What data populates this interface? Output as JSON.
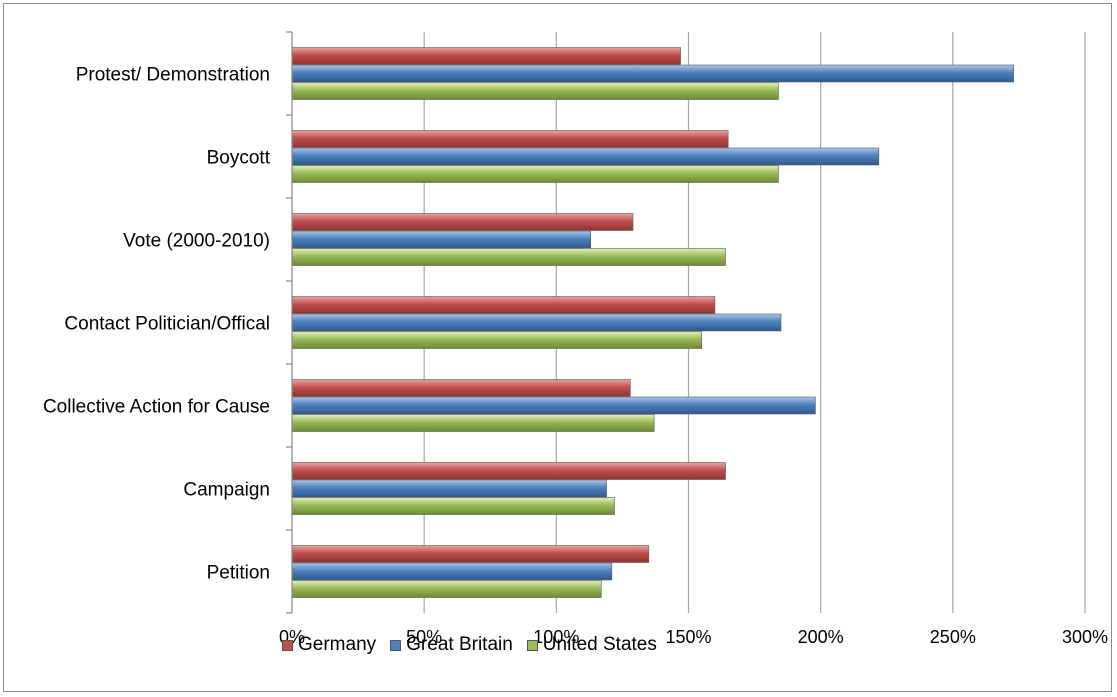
{
  "chart_data": {
    "type": "bar",
    "orientation": "horizontal",
    "categories": [
      "Protest/ Demonstration",
      "Boycott",
      "Vote (2000-2010)",
      "Contact Politician/Offical",
      "Collective Action for Cause",
      "Campaign",
      "Petition"
    ],
    "series": [
      {
        "name": "Germany",
        "color": "#c0504d",
        "values": [
          147,
          165,
          129,
          160,
          128,
          164,
          135
        ]
      },
      {
        "name": "Great Britain",
        "color": "#4f81bd",
        "values": [
          273,
          222,
          113,
          185,
          198,
          119,
          121
        ]
      },
      {
        "name": "United States",
        "color": "#9bbb59",
        "values": [
          184,
          184,
          164,
          155,
          137,
          122,
          117
        ]
      }
    ],
    "xlim": [
      0,
      300
    ],
    "ticks": [
      "0%",
      "50%",
      "100%",
      "150%",
      "200%",
      "250%",
      "300%"
    ],
    "tick_values": [
      0,
      50,
      100,
      150,
      200,
      250,
      300
    ],
    "grid": true,
    "legend_position": "bottom-left"
  }
}
